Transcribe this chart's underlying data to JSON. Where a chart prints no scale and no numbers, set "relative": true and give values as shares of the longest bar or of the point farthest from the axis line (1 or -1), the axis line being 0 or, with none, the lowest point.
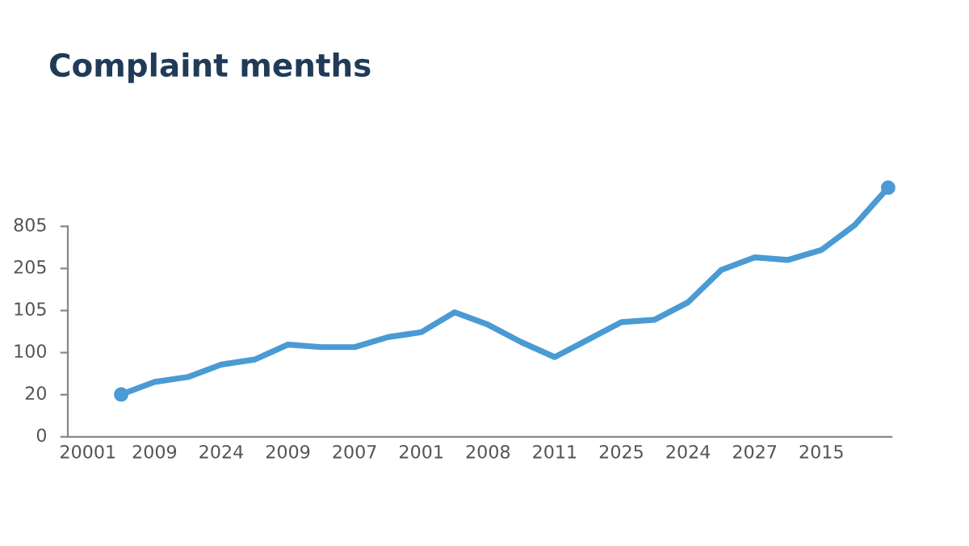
{
  "chart_data": {
    "type": "line",
    "title": "Complaint menths",
    "categories": [
      "20001",
      null,
      "2009",
      null,
      "2024",
      null,
      "2009",
      null,
      "2007",
      null,
      "2001",
      null,
      "2008",
      null,
      "2011",
      null,
      "2025",
      null,
      "2024",
      null,
      "2027",
      null,
      "2015",
      null,
      null
    ],
    "relative": true,
    "annotations": [
      "0",
      "20",
      "100",
      "105",
      "205",
      "805"
    ],
    "grid": false,
    "line_style": "solid",
    "series": [
      {
        "color": "#4a9ad4",
        "values": [
          null,
          0.17,
          0.22,
          0.24,
          0.29,
          0.31,
          0.37,
          0.36,
          0.36,
          0.4,
          0.42,
          0.5,
          0.45,
          0.38,
          0.32,
          0.39,
          0.46,
          0.47,
          0.54,
          0.67,
          0.72,
          0.71,
          0.75,
          0.85,
          1
        ]
      }
    ]
  }
}
